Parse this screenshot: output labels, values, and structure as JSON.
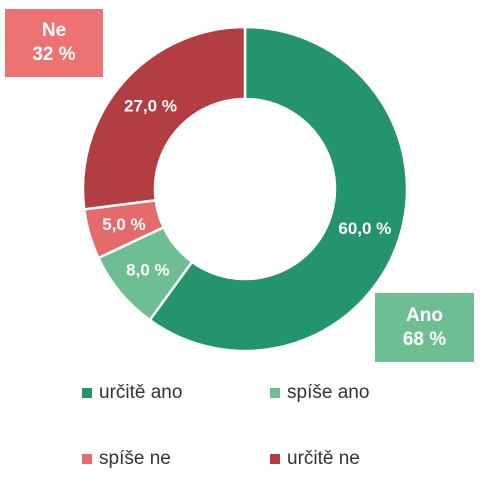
{
  "chart_data": {
    "type": "pie",
    "donut": true,
    "categories": [
      "určitě ano",
      "spíše ano",
      "spíše ne",
      "určitě ne"
    ],
    "values": [
      60.0,
      8.0,
      5.0,
      27.0
    ],
    "labels": [
      "60,0 %",
      "8,0 %",
      "5,0 %",
      "27,0 %"
    ],
    "colors": [
      "#23946b",
      "#6dbe93",
      "#e46a6c",
      "#b23e43"
    ],
    "legend_position": "bottom",
    "annotations": [
      {
        "title": "Ne",
        "value": "32 %",
        "color": "#ed7272"
      },
      {
        "title": "Ano",
        "value": "68 %",
        "color": "#6dbe93"
      }
    ]
  }
}
